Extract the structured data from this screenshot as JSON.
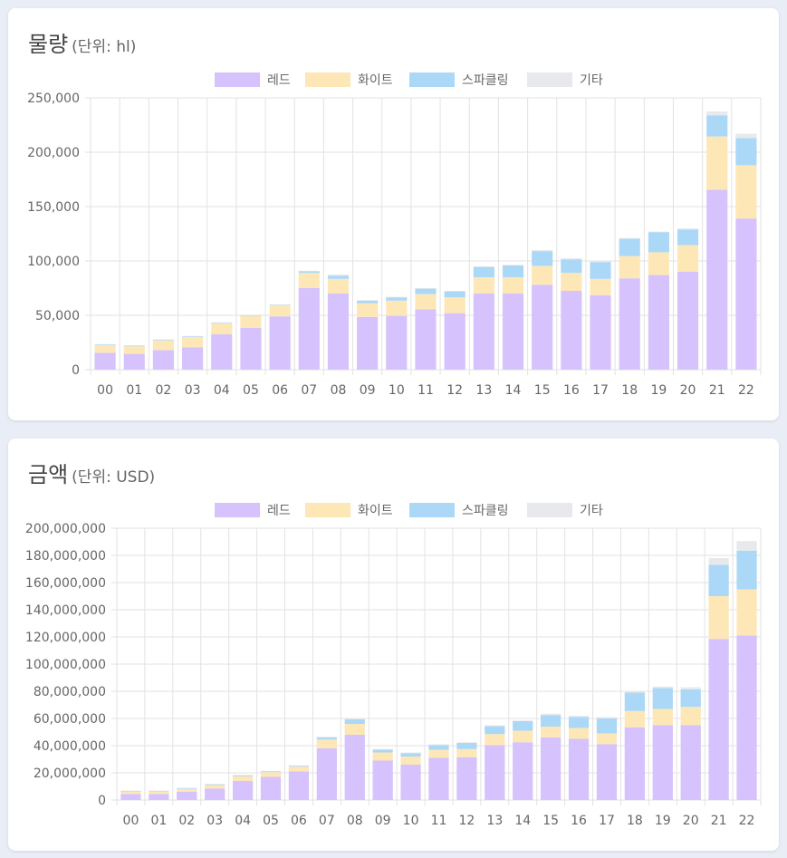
{
  "colors": {
    "red": "#d6c2fc",
    "white": "#fde7b7",
    "sparkling": "#acd8f7",
    "other": "#e8e9ec",
    "grid": "#e2e2e2",
    "text": "#666666"
  },
  "legend": [
    "레드",
    "화이트",
    "스파클링",
    "기타"
  ],
  "charts": {
    "volume": {
      "title": "물량",
      "unit": "(단위: hl)",
      "y_tick_labels": [
        "250,000",
        "200,000",
        "150,000",
        "100,000",
        "50,000",
        "0"
      ]
    },
    "value": {
      "title": "금액",
      "unit": "(단위: USD)",
      "y_tick_labels": [
        "200,000,000",
        "180,000,000",
        "160,000,000",
        "140,000,000",
        "120,000,000",
        "100,000,000",
        "80,000,000",
        "60,000,000",
        "40,000,000",
        "20,000,000",
        "0"
      ]
    }
  },
  "chart_data": [
    {
      "type": "bar",
      "stacked": true,
      "title": "물량",
      "ylabel": "(단위: hl)",
      "ylim": [
        0,
        250000
      ],
      "categories": [
        "00",
        "01",
        "02",
        "03",
        "04",
        "05",
        "06",
        "07",
        "08",
        "09",
        "10",
        "11",
        "12",
        "13",
        "14",
        "15",
        "16",
        "17",
        "18",
        "19",
        "20",
        "21",
        "22"
      ],
      "series": [
        {
          "name": "레드",
          "values": [
            15500,
            14500,
            18000,
            20500,
            32500,
            38500,
            49000,
            75000,
            70000,
            48500,
            49500,
            55500,
            52000,
            70000,
            70000,
            78000,
            72500,
            68500,
            84000,
            87000,
            90000,
            165500,
            139000
          ]
        },
        {
          "name": "화이트",
          "values": [
            7000,
            7000,
            9000,
            9500,
            10000,
            11000,
            10000,
            14000,
            13500,
            12500,
            14000,
            14000,
            14500,
            15000,
            15000,
            17500,
            16500,
            15000,
            20500,
            21000,
            24500,
            49000,
            49000
          ]
        },
        {
          "name": "스파클링",
          "values": [
            500,
            500,
            500,
            500,
            500,
            500,
            500,
            1500,
            3000,
            2500,
            3000,
            5000,
            5500,
            9500,
            11000,
            13500,
            12500,
            15500,
            16000,
            18500,
            14500,
            19500,
            25000
          ]
        },
        {
          "name": "기타",
          "values": [
            500,
            500,
            500,
            500,
            500,
            500,
            500,
            500,
            1000,
            500,
            500,
            500,
            500,
            500,
            500,
            1000,
            1000,
            500,
            500,
            500,
            1000,
            3500,
            4000
          ]
        }
      ]
    },
    {
      "type": "bar",
      "stacked": true,
      "title": "금액",
      "ylabel": "(단위: USD)",
      "ylim": [
        0,
        200000000
      ],
      "categories": [
        "00",
        "01",
        "02",
        "03",
        "04",
        "05",
        "06",
        "07",
        "08",
        "09",
        "10",
        "11",
        "12",
        "13",
        "14",
        "15",
        "16",
        "17",
        "18",
        "19",
        "20",
        "21",
        "22"
      ],
      "series": [
        {
          "name": "레드",
          "values": [
            4500000,
            4500000,
            6000000,
            8500000,
            14000000,
            17000000,
            21000000,
            38000000,
            48000000,
            29000000,
            26000000,
            31000000,
            31500000,
            40500000,
            42500000,
            46000000,
            45000000,
            41000000,
            53500000,
            55000000,
            55000000,
            118500000,
            121000000
          ]
        },
        {
          "name": "화이트",
          "values": [
            1500000,
            1500000,
            2000000,
            2500000,
            3500000,
            3500000,
            3500000,
            6500000,
            8000000,
            6000000,
            6000000,
            6000000,
            6000000,
            8000000,
            8500000,
            8000000,
            8000000,
            8000000,
            12000000,
            12000000,
            13500000,
            31500000,
            34000000
          ]
        },
        {
          "name": "스파클링",
          "values": [
            500000,
            500000,
            500000,
            500000,
            500000,
            500000,
            500000,
            1500000,
            3500000,
            2000000,
            2500000,
            3500000,
            4500000,
            6000000,
            7000000,
            8500000,
            8000000,
            11000000,
            13500000,
            15500000,
            13000000,
            23000000,
            28500000
          ]
        },
        {
          "name": "기타",
          "values": [
            500000,
            500000,
            500000,
            500000,
            500000,
            500000,
            500000,
            500000,
            500000,
            500000,
            500000,
            500000,
            500000,
            500000,
            500000,
            1000000,
            1000000,
            1000000,
            1000000,
            1000000,
            1500000,
            5000000,
            7000000
          ]
        }
      ]
    }
  ]
}
